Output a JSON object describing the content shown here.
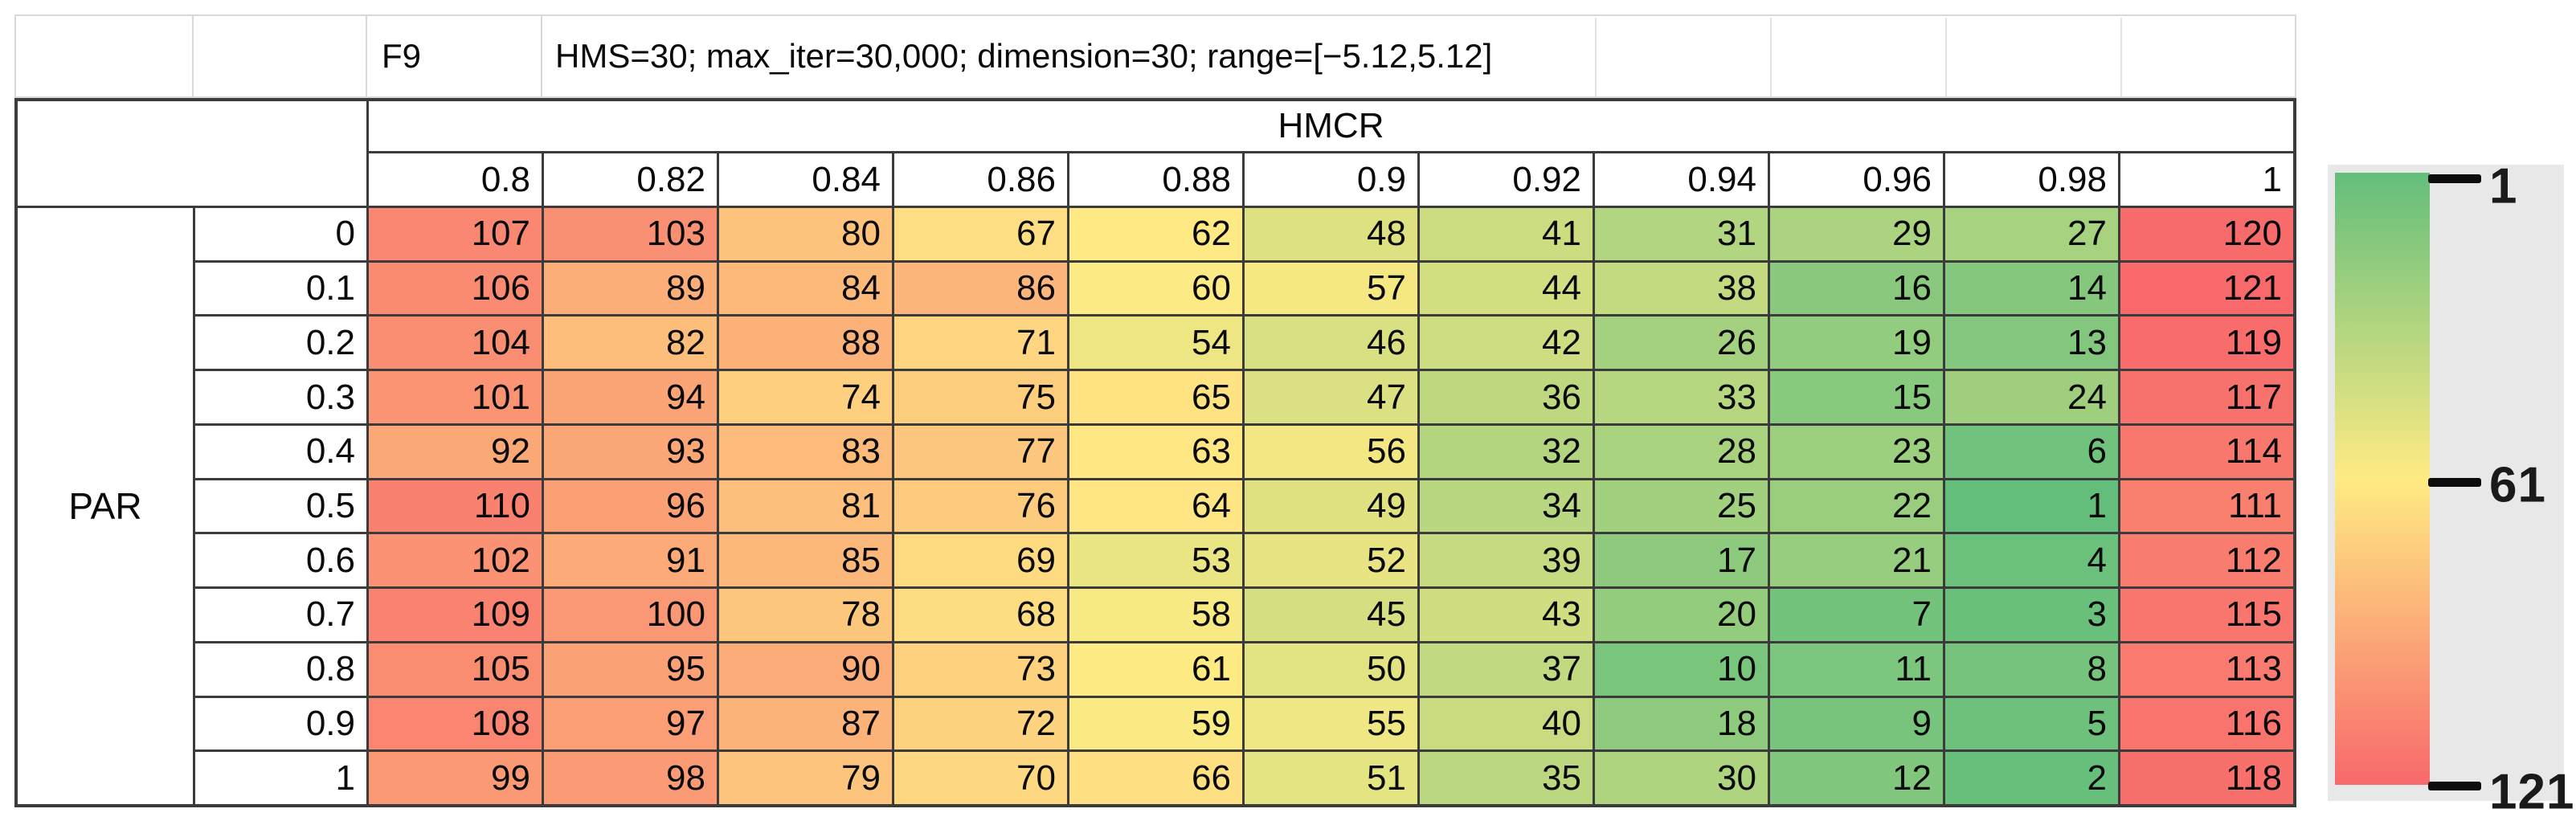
{
  "titlebar": {
    "function_label": "F9",
    "settings": "HMS=30; max_iter=30,000; dimension=30; range=[−5.12,5.12]"
  },
  "table": {
    "col_group_label": "HMCR",
    "row_group_label": "PAR",
    "col_headers": [
      "0.8",
      "0.82",
      "0.84",
      "0.86",
      "0.88",
      "0.9",
      "0.92",
      "0.94",
      "0.96",
      "0.98",
      "1"
    ],
    "row_headers": [
      "0",
      "0.1",
      "0.2",
      "0.3",
      "0.4",
      "0.5",
      "0.6",
      "0.7",
      "0.8",
      "0.9",
      "1"
    ]
  },
  "legend": {
    "tick_labels": [
      "1",
      "61",
      "121"
    ],
    "tick_values": [
      1,
      61,
      121
    ],
    "min_color": "#63BE7B",
    "mid_color": "#FFEB84",
    "max_color": "#F8696B",
    "panel_bg": "#E8E8E8"
  },
  "chart_data": {
    "type": "heatmap",
    "title": "F9 | HMS=30; max_iter=30,000; dimension=30; range=[−5.12,5.12]",
    "xlabel": "HMCR",
    "ylabel": "PAR",
    "x": [
      0.8,
      0.82,
      0.84,
      0.86,
      0.88,
      0.9,
      0.92,
      0.94,
      0.96,
      0.98,
      1
    ],
    "y": [
      0,
      0.1,
      0.2,
      0.3,
      0.4,
      0.5,
      0.6,
      0.7,
      0.8,
      0.9,
      1
    ],
    "values": [
      [
        107,
        103,
        80,
        67,
        62,
        48,
        41,
        31,
        29,
        27,
        120
      ],
      [
        106,
        89,
        84,
        86,
        60,
        57,
        44,
        38,
        16,
        14,
        121
      ],
      [
        104,
        82,
        88,
        71,
        54,
        46,
        42,
        26,
        19,
        13,
        119
      ],
      [
        101,
        94,
        74,
        75,
        65,
        47,
        36,
        33,
        15,
        24,
        117
      ],
      [
        92,
        93,
        83,
        77,
        63,
        56,
        32,
        28,
        23,
        6,
        114
      ],
      [
        110,
        96,
        81,
        76,
        64,
        49,
        34,
        25,
        22,
        1,
        111
      ],
      [
        102,
        91,
        85,
        69,
        53,
        52,
        39,
        17,
        21,
        4,
        112
      ],
      [
        109,
        100,
        78,
        68,
        58,
        45,
        43,
        20,
        7,
        3,
        115
      ],
      [
        105,
        95,
        90,
        73,
        61,
        50,
        37,
        10,
        11,
        8,
        113
      ],
      [
        108,
        97,
        87,
        72,
        59,
        55,
        40,
        18,
        9,
        5,
        116
      ],
      [
        99,
        98,
        79,
        70,
        66,
        51,
        35,
        30,
        12,
        2,
        118
      ]
    ],
    "color_scale": {
      "min": {
        "value": 1,
        "color": "#63BE7B"
      },
      "mid": {
        "value": 61,
        "color": "#FFEB84"
      },
      "max": {
        "value": 121,
        "color": "#F8696B"
      }
    },
    "legend_position": "right",
    "legend_ticks": [
      1,
      61,
      121
    ]
  }
}
